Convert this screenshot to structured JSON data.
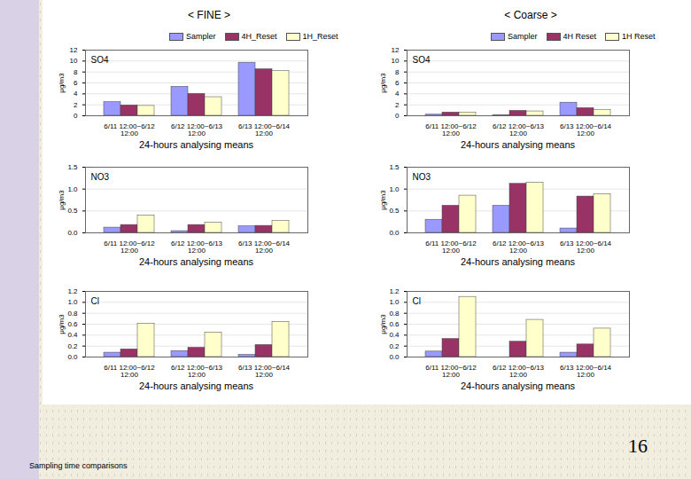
{
  "page": {
    "column_titles": [
      "< FINE >",
      "< Coarse >"
    ],
    "slide_number": "16",
    "caption": "Sampling time comparisons"
  },
  "chart_data": [
    {
      "type": "bar",
      "title": "SO4",
      "xlabel": "24-hours analysing means",
      "ylabel": "μg/m3",
      "categories": [
        "6/11 12:00~6/12 12:00",
        "6/12 12:00~6/13 12:00",
        "6/13 12:00~6/14 12:00"
      ],
      "series": [
        {
          "name": "Sampler",
          "color": "#9999ff",
          "values": [
            2.5,
            5.3,
            9.7
          ]
        },
        {
          "name": "4H_Reset",
          "color": "#993366",
          "values": [
            1.9,
            4.0,
            8.5
          ]
        },
        {
          "name": "1H_Reset",
          "color": "#ffffcc",
          "values": [
            1.8,
            3.4,
            8.2
          ]
        }
      ],
      "ylim": [
        0,
        12
      ],
      "yticks": [
        0,
        2,
        4,
        6,
        8,
        10,
        12
      ],
      "grid": true,
      "legend": "top"
    },
    {
      "type": "bar",
      "title": "SO4",
      "xlabel": "24-hours analysing means",
      "ylabel": "μg/m3",
      "categories": [
        "6/11 12:00~6/12 12:00",
        "6/12 12:00~6/13 12:00",
        "6/13 12:00~6/14 12:00"
      ],
      "series": [
        {
          "name": "Sampler",
          "color": "#9999ff",
          "values": [
            0.2,
            0.1,
            2.4
          ]
        },
        {
          "name": "4H Reset",
          "color": "#993366",
          "values": [
            0.6,
            0.9,
            1.4
          ]
        },
        {
          "name": "1H Reset",
          "color": "#ffffcc",
          "values": [
            0.6,
            0.8,
            1.1
          ]
        }
      ],
      "ylim": [
        0,
        12
      ],
      "yticks": [
        0,
        2,
        4,
        6,
        8,
        10,
        12
      ],
      "grid": true,
      "legend": "top"
    },
    {
      "type": "bar",
      "title": "NO3",
      "xlabel": "24-hours analysing means",
      "ylabel": "μg/m3",
      "categories": [
        "6/11 12:00~6/12 12:00",
        "6/12 12:00~6/13 12:00",
        "6/13 12:00~6/14 12:00"
      ],
      "series": [
        {
          "name": "Sampler",
          "color": "#9999ff",
          "values": [
            0.12,
            0.04,
            0.15
          ]
        },
        {
          "name": "4H_Reset",
          "color": "#993366",
          "values": [
            0.18,
            0.18,
            0.16
          ]
        },
        {
          "name": "1H_Reset",
          "color": "#ffffcc",
          "values": [
            0.4,
            0.23,
            0.27
          ]
        }
      ],
      "ylim": [
        0,
        1.5
      ],
      "yticks": [
        {
          "value": 0,
          "label": "0.0"
        },
        0.5,
        {
          "value": 1,
          "label": "1.0"
        },
        1.5
      ],
      "grid": true
    },
    {
      "type": "bar",
      "title": "NO3",
      "xlabel": "24-hours analysing means",
      "ylabel": "μg/m3",
      "categories": [
        "6/11 12:00~6/12 12:00",
        "6/12 12:00~6/13 12:00",
        "6/13 12:00~6/14 12:00"
      ],
      "series": [
        {
          "name": "Sampler",
          "color": "#9999ff",
          "values": [
            0.3,
            0.62,
            0.1
          ]
        },
        {
          "name": "4H Reset",
          "color": "#993366",
          "values": [
            0.62,
            1.12,
            0.83
          ]
        },
        {
          "name": "1H Reset",
          "color": "#ffffcc",
          "values": [
            0.85,
            1.15,
            0.88
          ]
        }
      ],
      "ylim": [
        0,
        1.5
      ],
      "yticks": [
        {
          "value": 0,
          "label": "0.0"
        },
        0.5,
        {
          "value": 1,
          "label": "1.0"
        },
        1.5
      ],
      "grid": true
    },
    {
      "type": "bar",
      "title": "Cl",
      "xlabel": "24-hours analysing means",
      "ylabel": "μg/m3",
      "categories": [
        "6/11 12:00~6/12 12:00",
        "6/12 12:00~6/13 12:00",
        "6/13 12:00~6/14 12:00"
      ],
      "series": [
        {
          "name": "Sampler",
          "color": "#9999ff",
          "values": [
            0.08,
            0.11,
            0.04
          ]
        },
        {
          "name": "4H_Reset",
          "color": "#993366",
          "values": [
            0.14,
            0.17,
            0.22
          ]
        },
        {
          "name": "1H_Reset",
          "color": "#ffffcc",
          "values": [
            0.61,
            0.45,
            0.64
          ]
        }
      ],
      "ylim": [
        0,
        1.2
      ],
      "yticks": [
        {
          "value": 0,
          "label": "0.0"
        },
        0.2,
        0.4,
        0.6,
        0.8,
        {
          "value": 1,
          "label": "1.0"
        },
        1.2
      ],
      "grid": true
    },
    {
      "type": "bar",
      "title": "Cl",
      "xlabel": "24-hours analysing means",
      "ylabel": "μg/m3",
      "categories": [
        "6/11 12:00~6/12 12:00",
        "6/12 12:00~6/13 12:00",
        "6/13 12:00~6/14 12:00"
      ],
      "series": [
        {
          "name": "Sampler",
          "color": "#9999ff",
          "values": [
            0.1,
            0,
            0.08
          ]
        },
        {
          "name": "4H Reset",
          "color": "#993366",
          "values": [
            0.33,
            0.28,
            0.23
          ]
        },
        {
          "name": "1H Reset",
          "color": "#ffffcc",
          "values": [
            1.1,
            0.68,
            0.52
          ]
        }
      ],
      "ylim": [
        0,
        1.2
      ],
      "yticks": [
        {
          "value": 0,
          "label": "0.0"
        },
        0.2,
        0.4,
        0.6,
        0.8,
        {
          "value": 1,
          "label": "1.0"
        },
        1.2
      ],
      "grid": true
    }
  ]
}
